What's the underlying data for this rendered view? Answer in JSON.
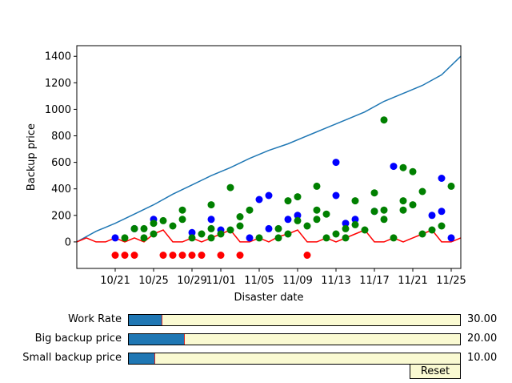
{
  "chart_data": {
    "type": "line+scatter",
    "title": "",
    "xlabel": "Disaster date",
    "ylabel": "Backup price",
    "xlim": [
      "2023-10-17",
      "2023-11-26"
    ],
    "ylim": [
      -200,
      1480
    ],
    "x_tick_labels": [
      "10/21",
      "10/25",
      "10/29",
      "11/01",
      "11/05",
      "11/09",
      "11/13",
      "11/17",
      "11/21",
      "11/25"
    ],
    "x_tick_dates": [
      "2023-10-21",
      "2023-10-25",
      "2023-10-29",
      "2023-11-01",
      "2023-11-05",
      "2023-11-09",
      "2023-11-13",
      "2023-11-17",
      "2023-11-21",
      "2023-11-25"
    ],
    "y_tick_labels": [
      "0",
      "200",
      "400",
      "600",
      "800",
      "1000",
      "1200",
      "1400"
    ],
    "y_tick_values": [
      0,
      200,
      400,
      600,
      800,
      1000,
      1200,
      1400
    ],
    "lines": [
      {
        "color": "#1f77b4",
        "x": [
          "2023-10-17",
          "2023-10-19",
          "2023-10-21",
          "2023-10-23",
          "2023-10-25",
          "2023-10-27",
          "2023-10-29",
          "2023-10-31",
          "2023-11-02",
          "2023-11-04",
          "2023-11-06",
          "2023-11-08",
          "2023-11-10",
          "2023-11-12",
          "2023-11-14",
          "2023-11-16",
          "2023-11-18",
          "2023-11-20",
          "2023-11-22",
          "2023-11-24",
          "2023-11-26"
        ],
        "y": [
          0,
          80,
          140,
          210,
          280,
          360,
          430,
          500,
          560,
          630,
          690,
          740,
          800,
          860,
          920,
          980,
          1060,
          1120,
          1180,
          1260,
          1400
        ]
      },
      {
        "color": "#ff0000",
        "x": [
          "2023-10-17",
          "2023-10-18",
          "2023-10-19",
          "2023-10-20",
          "2023-10-21",
          "2023-10-22",
          "2023-10-23",
          "2023-10-24",
          "2023-10-25",
          "2023-10-26",
          "2023-10-27",
          "2023-10-28",
          "2023-10-29",
          "2023-10-30",
          "2023-10-31",
          "2023-11-01",
          "2023-11-02",
          "2023-11-03",
          "2023-11-04",
          "2023-11-05",
          "2023-11-06",
          "2023-11-07",
          "2023-11-08",
          "2023-11-09",
          "2023-11-10",
          "2023-11-11",
          "2023-11-12",
          "2023-11-13",
          "2023-11-14",
          "2023-11-15",
          "2023-11-16",
          "2023-11-17",
          "2023-11-18",
          "2023-11-19",
          "2023-11-20",
          "2023-11-21",
          "2023-11-22",
          "2023-11-23",
          "2023-11-24",
          "2023-11-25",
          "2023-11-26"
        ],
        "y": [
          0,
          30,
          0,
          0,
          30,
          0,
          30,
          0,
          60,
          90,
          0,
          0,
          30,
          0,
          30,
          60,
          90,
          0,
          0,
          30,
          0,
          40,
          60,
          90,
          0,
          0,
          30,
          0,
          30,
          60,
          90,
          0,
          0,
          30,
          0,
          30,
          60,
          90,
          0,
          0,
          30
        ]
      }
    ],
    "scatter_series": [
      {
        "color": "#0000ff",
        "points": [
          {
            "x": "2023-10-21",
            "y": 30
          },
          {
            "x": "2023-10-23",
            "y": 100
          },
          {
            "x": "2023-10-25",
            "y": 170
          },
          {
            "x": "2023-10-29",
            "y": 70
          },
          {
            "x": "2023-10-31",
            "y": 170
          },
          {
            "x": "2023-11-01",
            "y": 90
          },
          {
            "x": "2023-11-04",
            "y": 30
          },
          {
            "x": "2023-11-05",
            "y": 320
          },
          {
            "x": "2023-11-06",
            "y": 350
          },
          {
            "x": "2023-11-06",
            "y": 100
          },
          {
            "x": "2023-11-08",
            "y": 170
          },
          {
            "x": "2023-11-09",
            "y": 200
          },
          {
            "x": "2023-11-13",
            "y": 600
          },
          {
            "x": "2023-11-13",
            "y": 350
          },
          {
            "x": "2023-11-14",
            "y": 140
          },
          {
            "x": "2023-11-15",
            "y": 170
          },
          {
            "x": "2023-11-17",
            "y": 230
          },
          {
            "x": "2023-11-19",
            "y": 570
          },
          {
            "x": "2023-11-23",
            "y": 200
          },
          {
            "x": "2023-11-24",
            "y": 480
          },
          {
            "x": "2023-11-24",
            "y": 230
          },
          {
            "x": "2023-11-25",
            "y": 30
          }
        ]
      },
      {
        "color": "#008000",
        "points": [
          {
            "x": "2023-10-22",
            "y": 30
          },
          {
            "x": "2023-10-23",
            "y": 100
          },
          {
            "x": "2023-10-24",
            "y": 30
          },
          {
            "x": "2023-10-24",
            "y": 100
          },
          {
            "x": "2023-10-25",
            "y": 60
          },
          {
            "x": "2023-10-25",
            "y": 140
          },
          {
            "x": "2023-10-26",
            "y": 160
          },
          {
            "x": "2023-10-27",
            "y": 120
          },
          {
            "x": "2023-10-28",
            "y": 170
          },
          {
            "x": "2023-10-28",
            "y": 240
          },
          {
            "x": "2023-10-29",
            "y": 30
          },
          {
            "x": "2023-10-30",
            "y": 60
          },
          {
            "x": "2023-10-31",
            "y": 280
          },
          {
            "x": "2023-10-31",
            "y": 100
          },
          {
            "x": "2023-10-31",
            "y": 30
          },
          {
            "x": "2023-11-01",
            "y": 60
          },
          {
            "x": "2023-11-02",
            "y": 410
          },
          {
            "x": "2023-11-02",
            "y": 90
          },
          {
            "x": "2023-11-03",
            "y": 190
          },
          {
            "x": "2023-11-03",
            "y": 120
          },
          {
            "x": "2023-11-04",
            "y": 240
          },
          {
            "x": "2023-11-05",
            "y": 30
          },
          {
            "x": "2023-11-07",
            "y": 100
          },
          {
            "x": "2023-11-07",
            "y": 30
          },
          {
            "x": "2023-11-08",
            "y": 310
          },
          {
            "x": "2023-11-08",
            "y": 60
          },
          {
            "x": "2023-11-09",
            "y": 340
          },
          {
            "x": "2023-11-09",
            "y": 160
          },
          {
            "x": "2023-11-10",
            "y": 120
          },
          {
            "x": "2023-11-11",
            "y": 420
          },
          {
            "x": "2023-11-11",
            "y": 240
          },
          {
            "x": "2023-11-11",
            "y": 170
          },
          {
            "x": "2023-11-12",
            "y": 210
          },
          {
            "x": "2023-11-12",
            "y": 30
          },
          {
            "x": "2023-11-13",
            "y": 60
          },
          {
            "x": "2023-11-14",
            "y": 100
          },
          {
            "x": "2023-11-14",
            "y": 30
          },
          {
            "x": "2023-11-15",
            "y": 310
          },
          {
            "x": "2023-11-15",
            "y": 130
          },
          {
            "x": "2023-11-16",
            "y": 90
          },
          {
            "x": "2023-11-17",
            "y": 370
          },
          {
            "x": "2023-11-17",
            "y": 230
          },
          {
            "x": "2023-11-18",
            "y": 920
          },
          {
            "x": "2023-11-18",
            "y": 240
          },
          {
            "x": "2023-11-18",
            "y": 170
          },
          {
            "x": "2023-11-19",
            "y": 30
          },
          {
            "x": "2023-11-20",
            "y": 560
          },
          {
            "x": "2023-11-20",
            "y": 310
          },
          {
            "x": "2023-11-20",
            "y": 240
          },
          {
            "x": "2023-11-21",
            "y": 530
          },
          {
            "x": "2023-11-21",
            "y": 280
          },
          {
            "x": "2023-11-22",
            "y": 380
          },
          {
            "x": "2023-11-22",
            "y": 60
          },
          {
            "x": "2023-11-23",
            "y": 90
          },
          {
            "x": "2023-11-24",
            "y": 120
          },
          {
            "x": "2023-11-25",
            "y": 420
          }
        ]
      },
      {
        "color": "#ff0000",
        "points": [
          {
            "x": "2023-10-21",
            "y": -100
          },
          {
            "x": "2023-10-22",
            "y": -100
          },
          {
            "x": "2023-10-23",
            "y": -100
          },
          {
            "x": "2023-10-26",
            "y": -100
          },
          {
            "x": "2023-10-27",
            "y": -100
          },
          {
            "x": "2023-10-28",
            "y": -100
          },
          {
            "x": "2023-10-29",
            "y": -100
          },
          {
            "x": "2023-10-30",
            "y": -100
          },
          {
            "x": "2023-11-01",
            "y": -100
          },
          {
            "x": "2023-11-03",
            "y": -100
          },
          {
            "x": "2023-11-10",
            "y": -100
          }
        ]
      }
    ]
  },
  "sliders": [
    {
      "label": "Work Rate",
      "value_text": "30.00",
      "fraction": 0.1
    },
    {
      "label": "Big backup price",
      "value_text": "20.00",
      "fraction": 0.167
    },
    {
      "label": "Small backup price",
      "value_text": "10.00",
      "fraction": 0.077
    }
  ],
  "reset_label": "Reset"
}
